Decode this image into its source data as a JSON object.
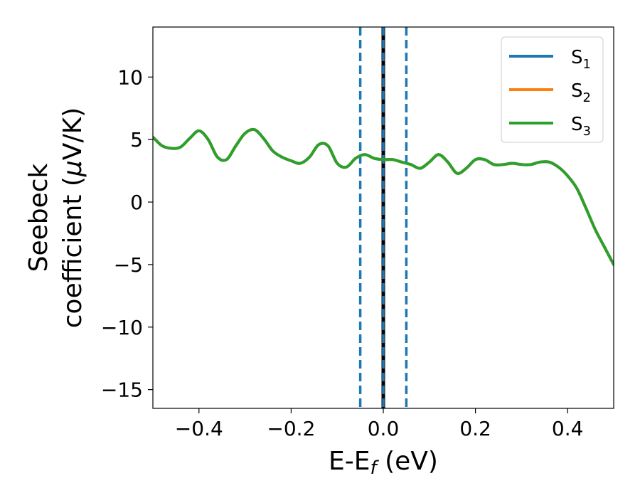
{
  "chart_data": {
    "type": "line",
    "xlabel": "E-E",
    "xlabel_sub": "f",
    "xlabel_suffix": " (eV)",
    "ylabel_line1": "Seebeck",
    "ylabel_line2_prefix": "coefficient  (",
    "ylabel_mu": "μ",
    "ylabel_line2_suffix": "V/K)",
    "xlim": [
      -0.5,
      0.5
    ],
    "ylim": [
      -16.5,
      14
    ],
    "xticks": [
      -0.4,
      -0.2,
      0.0,
      0.2,
      0.4
    ],
    "xtick_labels": [
      "−0.4",
      "−0.2",
      "0.0",
      "0.2",
      "0.4"
    ],
    "yticks": [
      -15,
      -10,
      -5,
      0,
      5,
      10
    ],
    "ytick_labels": [
      "−15",
      "−10",
      "−5",
      "0",
      "5",
      "10"
    ],
    "grid": false,
    "legend_position": "top-right",
    "vlines": [
      {
        "x": 0.0,
        "style": "solid",
        "color": "#000000"
      },
      {
        "x": 0.0,
        "style": "dashed",
        "color": "#1f77b4"
      },
      {
        "x": -0.05,
        "style": "dashed",
        "color": "#1f77b4"
      },
      {
        "x": 0.05,
        "style": "dashed",
        "color": "#1f77b4"
      }
    ],
    "x": [
      -0.5,
      -0.48,
      -0.46,
      -0.44,
      -0.42,
      -0.4,
      -0.38,
      -0.36,
      -0.34,
      -0.32,
      -0.3,
      -0.28,
      -0.26,
      -0.24,
      -0.22,
      -0.2,
      -0.18,
      -0.16,
      -0.14,
      -0.12,
      -0.1,
      -0.08,
      -0.06,
      -0.04,
      -0.02,
      0.0,
      0.02,
      0.04,
      0.06,
      0.08,
      0.1,
      0.12,
      0.14,
      0.16,
      0.18,
      0.2,
      0.22,
      0.24,
      0.26,
      0.28,
      0.3,
      0.32,
      0.34,
      0.36,
      0.38,
      0.4,
      0.42,
      0.44,
      0.46,
      0.48,
      0.5
    ],
    "series": [
      {
        "name": "S",
        "sub": "1",
        "color": "#1f77b4",
        "values": [
          5.2,
          4.5,
          4.3,
          4.4,
          5.1,
          5.7,
          5.0,
          3.6,
          3.4,
          4.5,
          5.5,
          5.8,
          5.1,
          4.1,
          3.6,
          3.3,
          3.1,
          3.6,
          4.6,
          4.5,
          3.1,
          2.8,
          3.5,
          3.8,
          3.5,
          3.4,
          3.4,
          3.2,
          3.0,
          2.7,
          3.2,
          3.8,
          3.2,
          2.3,
          2.7,
          3.4,
          3.4,
          3.0,
          3.0,
          3.1,
          3.0,
          3.0,
          3.2,
          3.2,
          2.8,
          2.1,
          1.1,
          -0.5,
          -2.2,
          -3.6,
          -5.0
        ]
      },
      {
        "name": "S",
        "sub": "2",
        "color": "#ff7f0e",
        "values": [
          5.2,
          4.5,
          4.3,
          4.4,
          5.1,
          5.7,
          5.0,
          3.6,
          3.4,
          4.5,
          5.5,
          5.8,
          5.1,
          4.1,
          3.6,
          3.3,
          3.1,
          3.6,
          4.6,
          4.5,
          3.1,
          2.8,
          3.5,
          3.8,
          3.5,
          3.4,
          3.4,
          3.2,
          3.0,
          2.7,
          3.2,
          3.8,
          3.2,
          2.3,
          2.7,
          3.4,
          3.4,
          3.0,
          3.0,
          3.1,
          3.0,
          3.0,
          3.2,
          3.2,
          2.8,
          2.1,
          1.1,
          -0.5,
          -2.2,
          -3.6,
          -5.0
        ]
      },
      {
        "name": "S",
        "sub": "3",
        "color": "#2ca02c",
        "values": [
          5.2,
          4.5,
          4.3,
          4.4,
          5.1,
          5.7,
          5.0,
          3.6,
          3.4,
          4.5,
          5.5,
          5.8,
          5.1,
          4.1,
          3.6,
          3.3,
          3.1,
          3.6,
          4.6,
          4.5,
          3.1,
          2.8,
          3.5,
          3.8,
          3.5,
          3.4,
          3.4,
          3.2,
          3.0,
          2.7,
          3.2,
          3.8,
          3.2,
          2.3,
          2.7,
          3.4,
          3.4,
          3.0,
          3.0,
          3.1,
          3.0,
          3.0,
          3.2,
          3.2,
          2.8,
          2.1,
          1.1,
          -0.5,
          -2.2,
          -3.6,
          -5.0
        ]
      }
    ]
  }
}
